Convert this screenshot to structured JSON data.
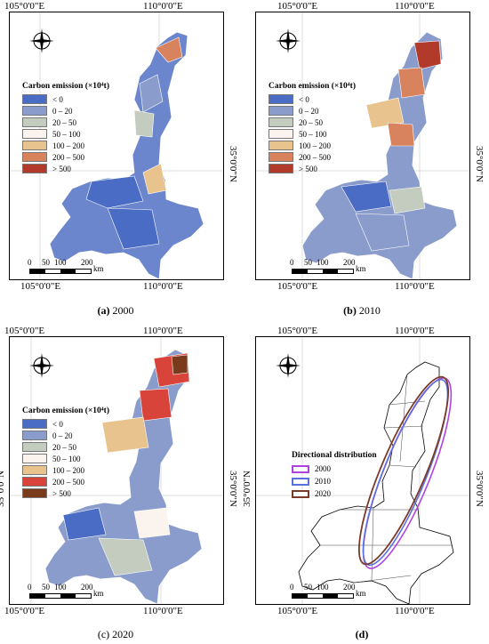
{
  "axes": {
    "lon_left": "105°0'0\"E",
    "lon_right": "110°0'0\"E",
    "lat": "35°0'0\"N"
  },
  "compass": {
    "n": "N",
    "s": "S",
    "e": "E",
    "w": "W"
  },
  "legend": {
    "title": "Carbon emission (×10⁴t)",
    "classes": [
      {
        "label": "< 0",
        "color": "#4a6cc4"
      },
      {
        "label": "0 – 20",
        "color": "#8a9ccb"
      },
      {
        "label": "20 – 50",
        "color": "#c4ccc0"
      },
      {
        "label": "50 – 100",
        "color": "#fbf3ee"
      },
      {
        "label": "100 – 200",
        "color": "#e9c38d"
      },
      {
        "label": "200 – 500",
        "color": "#d9825e"
      },
      {
        "label": "> 500",
        "color": "#b23a2b"
      }
    ]
  },
  "legend_2020": {
    "classes": [
      {
        "label": "< 0",
        "color": "#4a6cc4"
      },
      {
        "label": "0 – 20",
        "color": "#8a9ccb"
      },
      {
        "label": "20 – 50",
        "color": "#c4ccc0"
      },
      {
        "label": "50 – 100",
        "color": "#fbf3ee"
      },
      {
        "label": "100 – 200",
        "color": "#e9c38d"
      },
      {
        "label": "200 – 500",
        "color": "#d9443a"
      },
      {
        "label": "> 500",
        "color": "#7a3a1c"
      }
    ]
  },
  "directional": {
    "title": "Directional distribution",
    "items": [
      {
        "label": "2000",
        "color": "#b042e0"
      },
      {
        "label": "2010",
        "color": "#5a6fe0"
      },
      {
        "label": "2020",
        "color": "#7a3c28"
      }
    ]
  },
  "scale": {
    "n0": "0",
    "n1": "50",
    "n2": "100",
    "n3": "200",
    "unit": "km"
  },
  "captions": {
    "a_letter": "(a)",
    "a_year": "2000",
    "b_letter": "(b)",
    "b_year": "2010",
    "c_letter": "(c)",
    "c_year": "2020",
    "d_letter": "(d)"
  }
}
